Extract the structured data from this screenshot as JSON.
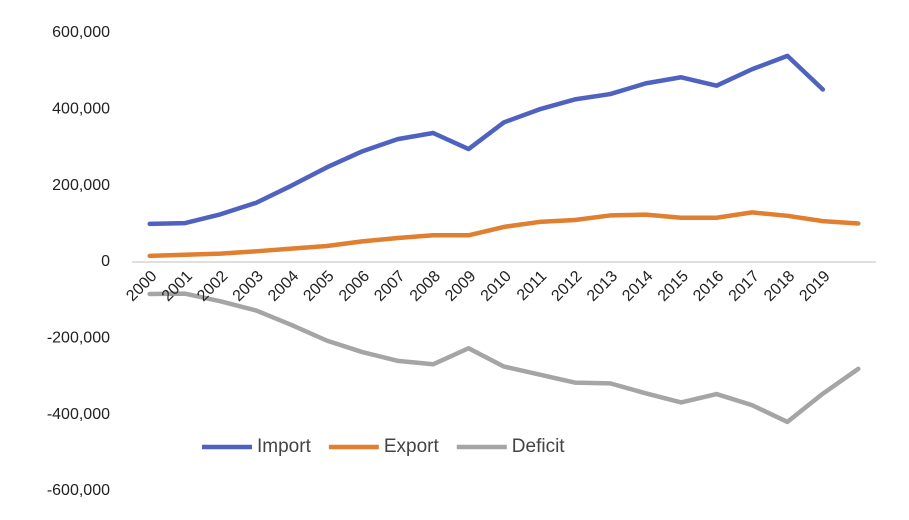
{
  "chart_data": {
    "type": "line",
    "categories": [
      "2000",
      "2001",
      "2002",
      "2003",
      "2004",
      "2005",
      "2006",
      "2007",
      "2008",
      "2009",
      "2010",
      "2011",
      "2012",
      "2013",
      "2014",
      "2015",
      "2016",
      "2017",
      "2018",
      "2019",
      null
    ],
    "series": [
      {
        "name": "Import",
        "color": "#5062c0",
        "values": [
          100000,
          102000,
          125000,
          155000,
          200000,
          248000,
          290000,
          322000,
          338000,
          296000,
          366000,
          400000,
          426000,
          440000,
          468000,
          484000,
          462000,
          505000,
          540000,
          452000,
          null
        ]
      },
      {
        "name": "Export",
        "color": "#e07f30",
        "values": [
          16000,
          19000,
          22000,
          28000,
          35000,
          42000,
          54000,
          63000,
          70000,
          70000,
          92000,
          105000,
          110000,
          122000,
          124000,
          116000,
          116000,
          130000,
          121000,
          107000,
          101000
        ]
      },
      {
        "name": "Deficit",
        "color": "#a5a5a5",
        "values": [
          -84000,
          -83000,
          -103000,
          -127000,
          -165000,
          -206000,
          -236000,
          -259000,
          -268000,
          -226000,
          -274000,
          -295000,
          -316000,
          -318000,
          -344000,
          -368000,
          -346000,
          -375000,
          -419000,
          -345000,
          -280000
        ]
      }
    ],
    "ylim": [
      -600000,
      600000
    ],
    "yticks": [
      {
        "value": -600000,
        "label": "-600,000"
      },
      {
        "value": -400000,
        "label": "-400,000"
      },
      {
        "value": -200000,
        "label": "-200,000"
      },
      0,
      {
        "value": 200000,
        "label": "200,000"
      },
      {
        "value": 400000,
        "label": "400,000"
      },
      {
        "value": 600000,
        "label": "600,000"
      }
    ],
    "grid": false,
    "legend": "bottom"
  }
}
